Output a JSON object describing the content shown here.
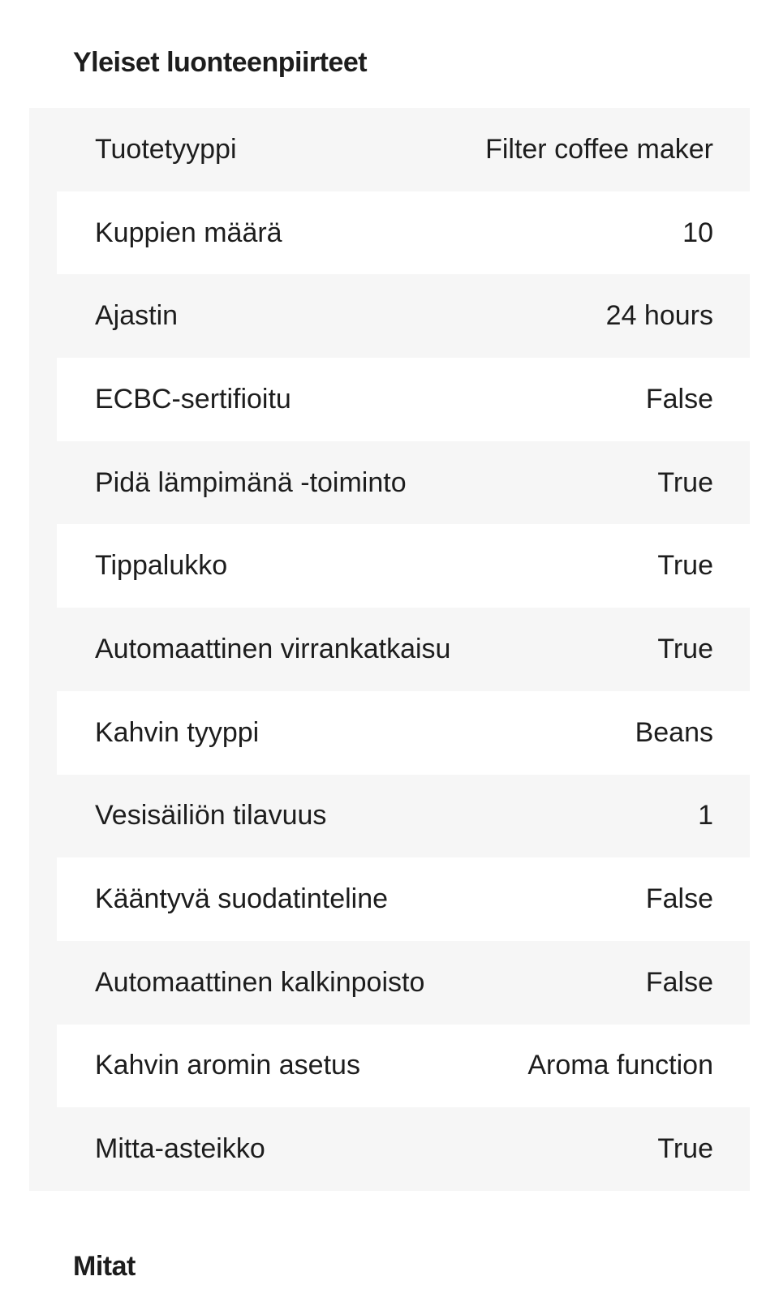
{
  "colors": {
    "page_background": "#ffffff",
    "row_alt_background": "#f6f6f6",
    "row_white_background": "#ffffff",
    "text": "#1d1d1d"
  },
  "sections": {
    "general": {
      "title": "Yleiset luonteenpiirteet",
      "rows": [
        {
          "label": "Tuotetyyppi",
          "value": "Filter coffee maker"
        },
        {
          "label": "Kuppien määrä",
          "value": "10"
        },
        {
          "label": "Ajastin",
          "value": "24 hours"
        },
        {
          "label": "ECBC-sertifioitu",
          "value": "False"
        },
        {
          "label": "Pidä lämpimänä -toiminto",
          "value": "True"
        },
        {
          "label": "Tippalukko",
          "value": "True"
        },
        {
          "label": "Automaattinen virrankatkaisu",
          "value": "True"
        },
        {
          "label": "Kahvin tyyppi",
          "value": "Beans"
        },
        {
          "label": "Vesisäiliön tilavuus",
          "value": "1"
        },
        {
          "label": "Kääntyvä suodatinteline",
          "value": "False"
        },
        {
          "label": "Automaattinen kalkinpoisto",
          "value": "False"
        },
        {
          "label": "Kahvin aromin asetus",
          "value": "Aroma function"
        },
        {
          "label": "Mitta-asteikko",
          "value": "True"
        }
      ]
    },
    "dimensions": {
      "title": "Mitat"
    }
  }
}
